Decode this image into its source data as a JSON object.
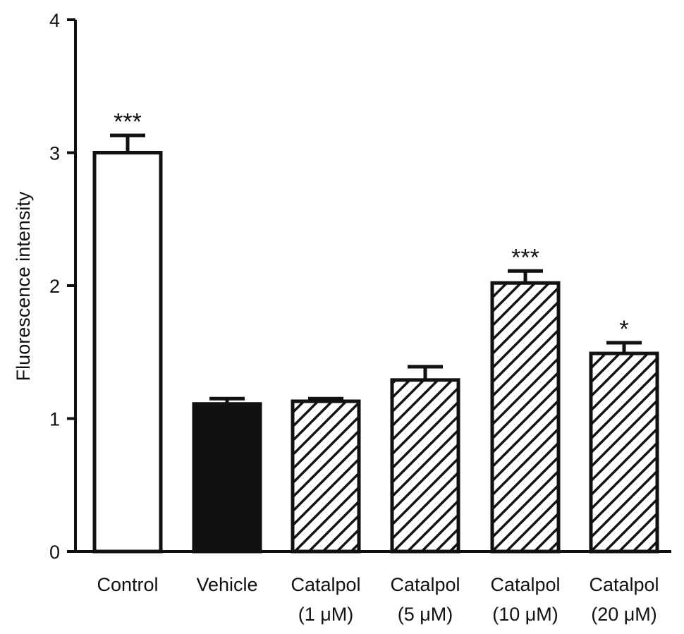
{
  "chart_data": {
    "type": "bar",
    "ylabel": "Fluorescence intensity",
    "xlabel": "",
    "ylim": [
      0,
      4
    ],
    "yticks": [
      0,
      1,
      2,
      3,
      4
    ],
    "grid": false,
    "categories": [
      [
        "Control"
      ],
      [
        "Vehicle"
      ],
      [
        "Catalpol",
        "(1 μM)"
      ],
      [
        "Catalpol",
        "(5 μM)"
      ],
      [
        "Catalpol",
        "(10 μM)"
      ],
      [
        "Catalpol",
        "(20 μM)"
      ]
    ],
    "values": [
      3.0,
      1.11,
      1.13,
      1.29,
      2.02,
      1.49
    ],
    "errors": [
      0.13,
      0.04,
      0.02,
      0.1,
      0.09,
      0.08
    ],
    "significance": [
      "***",
      "",
      "",
      "",
      "***",
      "*"
    ],
    "fills": [
      "white",
      "black",
      "hatch",
      "hatch",
      "hatch",
      "hatch"
    ]
  },
  "colors": {
    "ink": "#111111",
    "background": "#ffffff"
  }
}
